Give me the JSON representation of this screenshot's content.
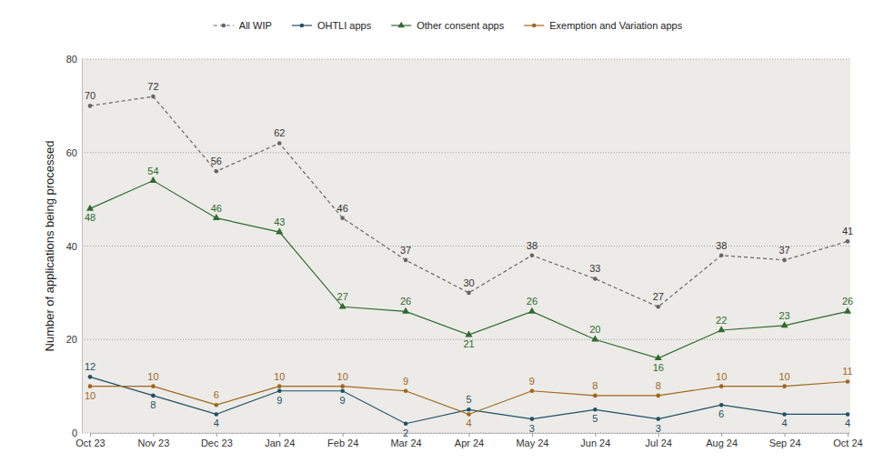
{
  "chart_data": {
    "type": "line",
    "y_label": "Number of applications being processed",
    "categories": [
      "Oct 23",
      "Nov 23",
      "Dec 23",
      "Jan 24",
      "Feb 24",
      "Mar 24",
      "Apr 24",
      "May 24",
      "Jun 24",
      "Jul 24",
      "Aug 24",
      "Sep 24",
      "Oct 24"
    ],
    "series": [
      {
        "name": "All WIP",
        "color": "#666666",
        "marker": "circle",
        "line_style": "dashed",
        "values": [
          70,
          72,
          56,
          62,
          46,
          37,
          30,
          38,
          33,
          27,
          38,
          37,
          41
        ]
      },
      {
        "name": "OHTLI apps",
        "color": "#1f5068",
        "marker": "circle",
        "line_style": "solid",
        "values": [
          12,
          8,
          4,
          9,
          9,
          2,
          5,
          3,
          5,
          3,
          6,
          4,
          4
        ]
      },
      {
        "name": "Other consent apps",
        "color": "#2e6b2e",
        "marker": "triangle",
        "line_style": "solid",
        "values": [
          48,
          54,
          46,
          43,
          27,
          26,
          21,
          26,
          20,
          16,
          22,
          23,
          26
        ]
      },
      {
        "name": "Exemption and Variation apps",
        "color": "#a0661c",
        "marker": "circle",
        "line_style": "solid",
        "values": [
          10,
          10,
          6,
          10,
          10,
          9,
          4,
          9,
          8,
          8,
          10,
          10,
          11
        ]
      }
    ],
    "ylim": [
      0,
      80
    ],
    "yticks": [
      0,
      20,
      40,
      60,
      80
    ],
    "grid": true,
    "legend": "top",
    "data_labels": true
  }
}
